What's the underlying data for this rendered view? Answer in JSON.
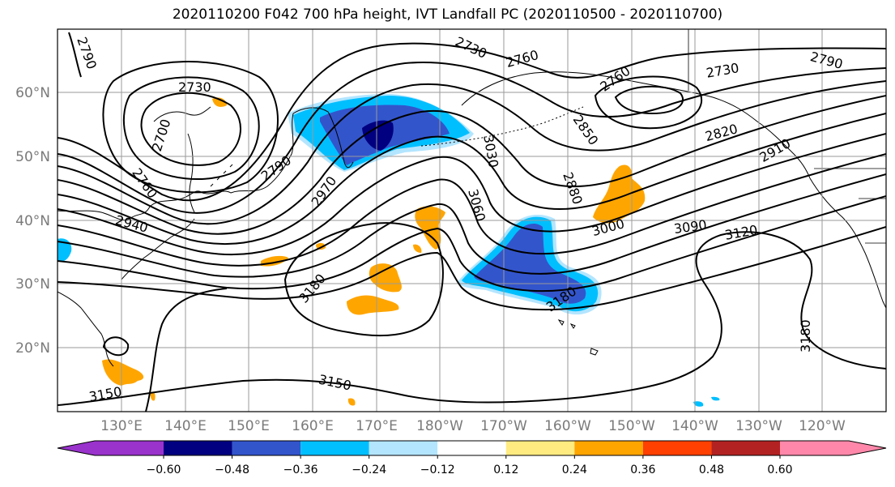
{
  "title": "2020110200 F042 700 hPa height, IVT Landfall PC (2020110500 - 2020110700)",
  "map": {
    "lat_labels": [
      "60°N",
      "50°N",
      "40°N",
      "30°N",
      "20°N"
    ],
    "lon_labels": [
      "130°E",
      "140°E",
      "150°E",
      "160°E",
      "170°E",
      "180°W",
      "170°W",
      "160°W",
      "150°W",
      "140°W",
      "130°W",
      "120°W"
    ],
    "contour_labels": [
      "2790",
      "2730",
      "2700",
      "2760",
      "2790",
      "2760",
      "2730",
      "2760",
      "2730",
      "2850",
      "2820",
      "2910",
      "2790",
      "2970",
      "3030",
      "2880",
      "3060",
      "2940",
      "3000",
      "3090",
      "3120",
      "3180",
      "3180",
      "3150",
      "3150",
      "3180"
    ],
    "colors": {
      "land_outline": "#000000",
      "grid": "#9a9a9a"
    }
  },
  "colorbar": {
    "ticks": [
      "−0.60",
      "−0.48",
      "−0.36",
      "−0.24",
      "−0.12",
      "0.12",
      "0.24",
      "0.36",
      "0.48",
      "0.60"
    ],
    "colors": [
      "#9933cc",
      "#000080",
      "#3355cc",
      "#00bfff",
      "#b3e5ff",
      "#ffffff",
      "#ffeb80",
      "#ffa500",
      "#ff4000",
      "#b22222",
      "#ff88aa"
    ]
  }
}
